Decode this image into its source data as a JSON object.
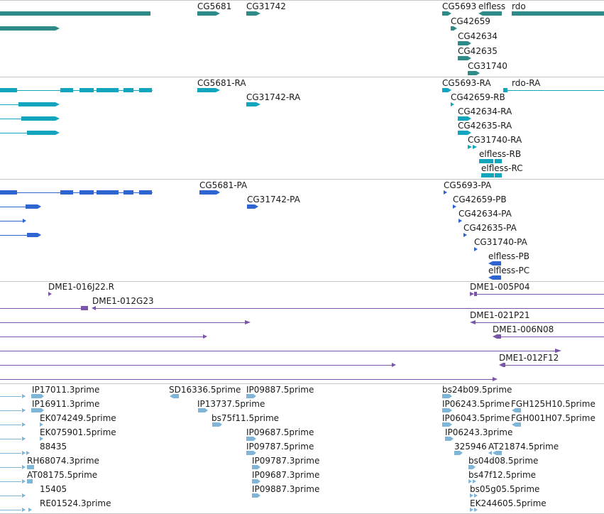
{
  "colors": {
    "gene": "#2e8b87",
    "transcript": "#12a5bd",
    "cds": "#2f65d0",
    "bac": "#7a54a8",
    "est": "#7fb6d8",
    "divider": "#c8c8c8"
  },
  "tracks": {
    "genes": {
      "labels": [
        "CG5681",
        "CG31742",
        "CG5693",
        "elfless",
        "rdo",
        "CG42659",
        "CG42634",
        "CG42635",
        "CG31740"
      ]
    },
    "transcripts": {
      "labels": [
        "CG5681-RA",
        "CG31742-RA",
        "CG5693-RA",
        "rdo-RA",
        "CG42659-RB",
        "CG42634-RA",
        "CG42635-RA",
        "CG31740-RA",
        "elfless-RB",
        "elfless-RC"
      ]
    },
    "proteins": {
      "labels": [
        "CG5681-PA",
        "CG31742-PA",
        "CG5693-PA",
        "CG42659-PB",
        "CG42634-PA",
        "CG42635-PA",
        "CG31740-PA",
        "elfless-PB",
        "elfless-PC"
      ]
    },
    "bac_ends": {
      "labels": [
        "DME1-016J22.R",
        "DME1-012G23",
        "DME1-005P04",
        "DME1-021P21",
        "DME1-006N08",
        "DME1-012F12"
      ]
    },
    "ests": {
      "labels": [
        "IP17011.3prime",
        "IP16911.3prime",
        "EK074249.5prime",
        "EK075901.5prime",
        "88435",
        "RH68074.3prime",
        "AT08175.5prime",
        "15405",
        "RE01524.3prime",
        "SD16336.5prime",
        "IP13737.5prime",
        "bs75f11.5prime",
        "IP09887.5prime",
        "IP09687.5prime",
        "IP09787.5prime",
        "IP09787.3prime",
        "IP09687.3prime",
        "IP09887.3prime",
        "bs24b09.5prime",
        "IP06243.5prime",
        "FGH125H10.5prime",
        "IP06043.5prime",
        "FGH001H07.5prime",
        "IP06243.3prime",
        "325946",
        "AT21874.5prime",
        "bs04d08.5prime",
        "bs47f12.5prime",
        "bs05g05.5prime",
        "EK244605.5prime"
      ]
    }
  }
}
